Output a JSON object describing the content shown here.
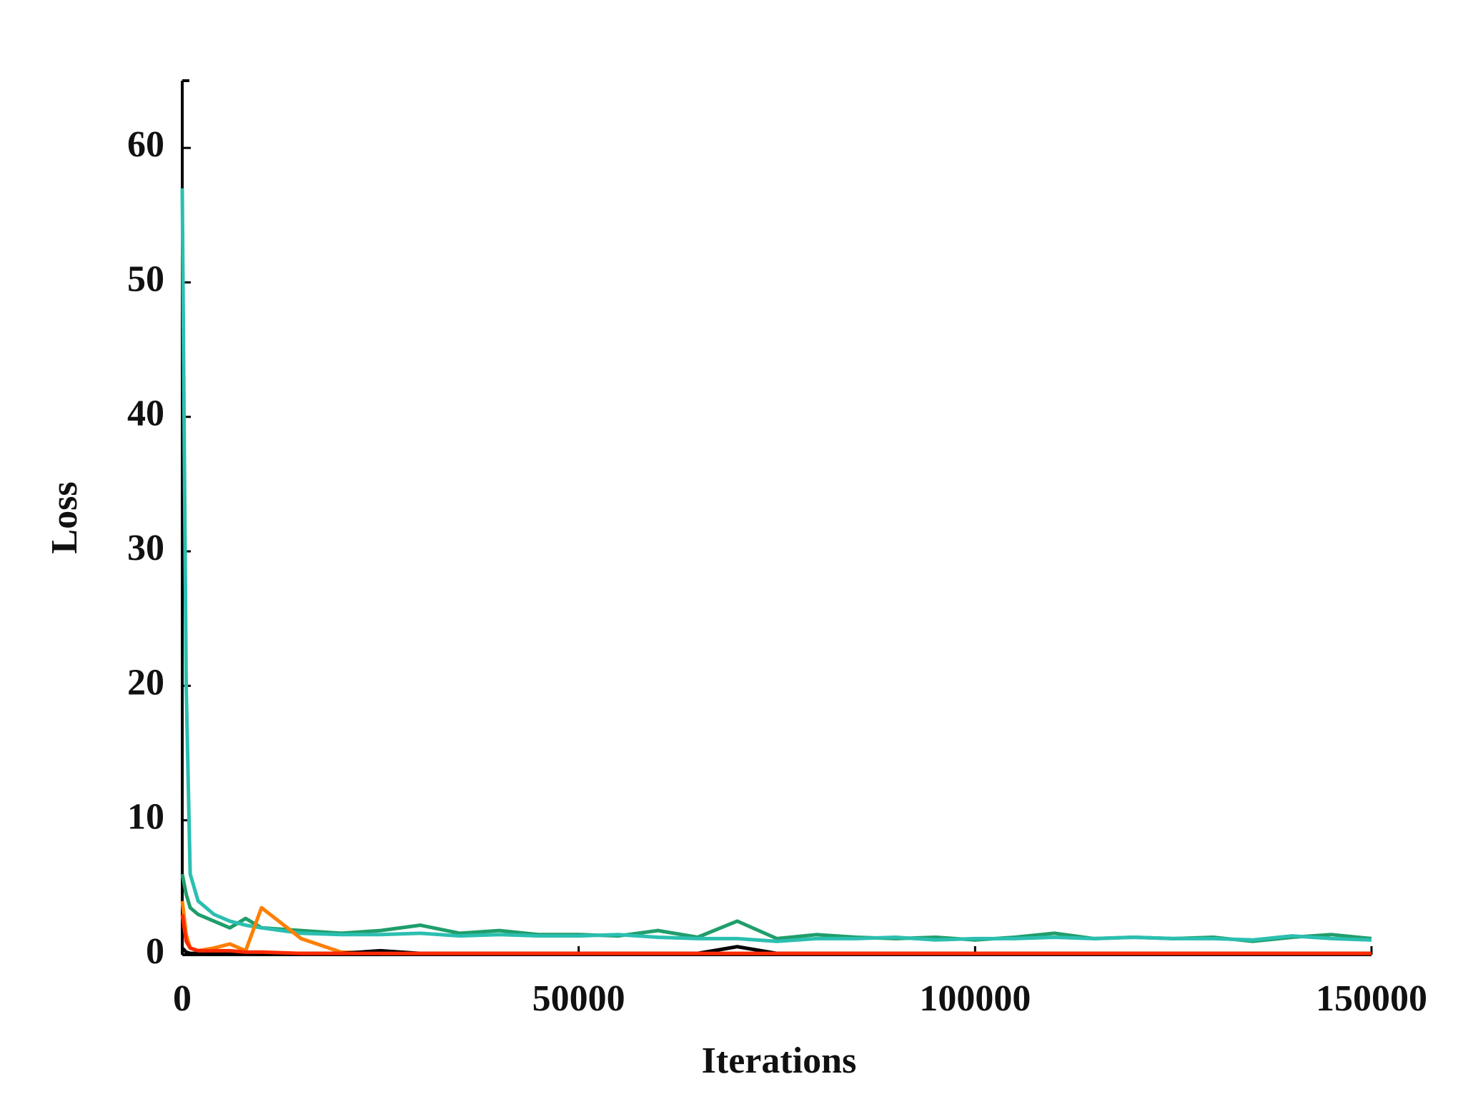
{
  "chart_data": {
    "type": "line",
    "x_label": "Iterations",
    "y_label": "Loss",
    "x": [
      0,
      500,
      1000,
      2000,
      4000,
      6000,
      8000,
      10000,
      15000,
      20000,
      25000,
      30000,
      35000,
      40000,
      45000,
      50000,
      55000,
      60000,
      65000,
      70000,
      75000,
      80000,
      85000,
      90000,
      95000,
      100000,
      105000,
      110000,
      115000,
      120000,
      125000,
      130000,
      135000,
      140000,
      145000,
      150000
    ],
    "series": [
      {
        "color": "#1f9e6b",
        "values": [
          6,
          4.5,
          3.5,
          3,
          2.5,
          2,
          2.7,
          2,
          1.8,
          1.6,
          1.8,
          2.2,
          1.6,
          1.8,
          1.5,
          1.5,
          1.4,
          1.8,
          1.3,
          2.5,
          1.2,
          1.5,
          1.3,
          1.2,
          1.3,
          1.1,
          1.3,
          1.6,
          1.2,
          1.3,
          1.2,
          1.3,
          1.0,
          1.3,
          1.5,
          1.2
        ]
      },
      {
        "color": "#2bbfb0",
        "values": [
          57,
          20,
          6,
          4,
          3,
          2.5,
          2.2,
          2,
          1.6,
          1.5,
          1.5,
          1.6,
          1.4,
          1.5,
          1.4,
          1.4,
          1.5,
          1.3,
          1.2,
          1.2,
          1.0,
          1.2,
          1.2,
          1.3,
          1.1,
          1.2,
          1.2,
          1.3,
          1.2,
          1.3,
          1.2,
          1.2,
          1.1,
          1.4,
          1.2,
          1.1
        ]
      },
      {
        "color": "#ff7f00",
        "values": [
          4,
          1.5,
          0.5,
          0.3,
          0.5,
          0.8,
          0.3,
          3.5,
          1.2,
          0.2,
          0.1,
          0.1,
          0.1,
          0.1,
          0.1,
          0.1,
          0.1,
          0.1,
          0.1,
          0.1,
          0.1,
          0.1,
          0.1,
          0.1,
          0.1,
          0.1,
          0.1,
          0.1,
          0.1,
          0.1,
          0.1,
          0.1,
          0.1,
          0.1,
          0.1,
          0.1
        ]
      },
      {
        "color": "#000000",
        "values": [
          0.5,
          0.2,
          0.1,
          0.1,
          0.1,
          0.1,
          0.1,
          0.1,
          0.1,
          0.1,
          0.3,
          0.1,
          0.1,
          0.1,
          0.1,
          0.1,
          0.1,
          0.1,
          0.1,
          0.6,
          0.1,
          0.1,
          0.1,
          0.1,
          0.1,
          0.1,
          0.1,
          0.1,
          0.1,
          0.1,
          0.1,
          0.1,
          0.1,
          0.1,
          0.1,
          0.1
        ]
      },
      {
        "color": "#ff2a00",
        "values": [
          3,
          1,
          0.5,
          0.3,
          0.3,
          0.3,
          0.2,
          0.2,
          0.1,
          0.1,
          0.1,
          0.1,
          0.1,
          0.1,
          0.1,
          0.1,
          0.1,
          0.1,
          0.1,
          0.1,
          0.1,
          0.1,
          0.1,
          0.1,
          0.1,
          0.1,
          0.1,
          0.1,
          0.1,
          0.1,
          0.1,
          0.1,
          0.1,
          0.1,
          0.1,
          0.1
        ]
      }
    ],
    "xlim": [
      0,
      150000
    ],
    "xticks": [
      0,
      50000,
      100000,
      150000
    ],
    "ylim": [
      0,
      65
    ],
    "yticks": [
      0,
      10,
      20,
      30,
      40,
      50,
      60
    ],
    "grid": false
  }
}
